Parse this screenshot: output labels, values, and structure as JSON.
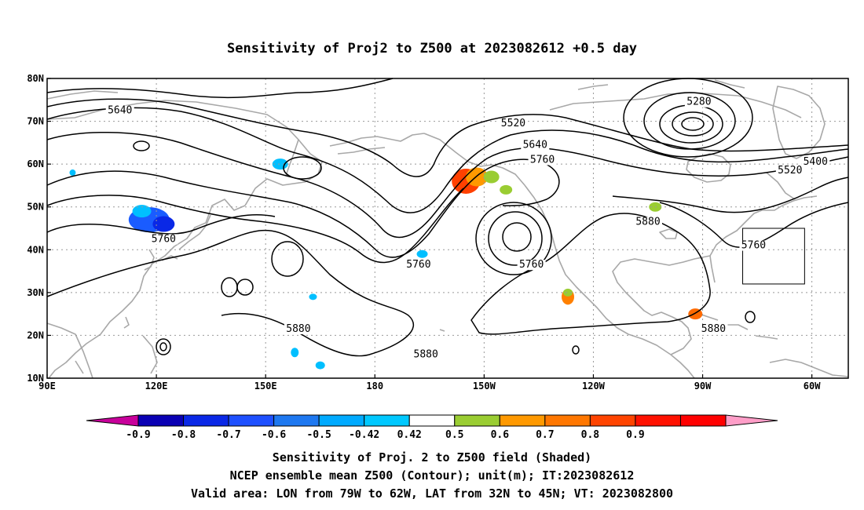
{
  "title": "Sensitivity of Proj2 to Z500 at 2023082612 +0.5 day",
  "map": {
    "lon_range": [
      90,
      310
    ],
    "lat_range": [
      10,
      80
    ],
    "lat_ticks": [
      {
        "value": 80,
        "label": "80N"
      },
      {
        "value": 70,
        "label": "70N"
      },
      {
        "value": 60,
        "label": "60N"
      },
      {
        "value": 50,
        "label": "50N"
      },
      {
        "value": 40,
        "label": "40N"
      },
      {
        "value": 30,
        "label": "30N"
      },
      {
        "value": 20,
        "label": "20N"
      },
      {
        "value": 10,
        "label": "10N"
      }
    ],
    "lon_ticks": [
      {
        "value": 90,
        "label": "90E"
      },
      {
        "value": 120,
        "label": "120E"
      },
      {
        "value": 150,
        "label": "150E"
      },
      {
        "value": 180,
        "label": "180"
      },
      {
        "value": 210,
        "label": "150W"
      },
      {
        "value": 240,
        "label": "120W"
      },
      {
        "value": 270,
        "label": "90W"
      },
      {
        "value": 300,
        "label": "60W"
      }
    ],
    "grid": "dotted",
    "valid_box": {
      "lon": [
        281,
        298
      ],
      "lat": [
        32,
        45
      ]
    },
    "contour_labels": [
      {
        "text": "5640",
        "lon": 110,
        "lat": 72
      },
      {
        "text": "5520",
        "lon": 218,
        "lat": 69
      },
      {
        "text": "5640",
        "lon": 224,
        "lat": 64
      },
      {
        "text": "5760",
        "lon": 226,
        "lat": 60.5
      },
      {
        "text": "5280",
        "lon": 269,
        "lat": 74
      },
      {
        "text": "5400",
        "lon": 301,
        "lat": 60
      },
      {
        "text": "5520",
        "lon": 294,
        "lat": 58
      },
      {
        "text": "5760",
        "lon": 122,
        "lat": 42
      },
      {
        "text": "5760",
        "lon": 192,
        "lat": 36
      },
      {
        "text": "5760",
        "lon": 223,
        "lat": 36
      },
      {
        "text": "5880",
        "lon": 255,
        "lat": 46
      },
      {
        "text": "5760",
        "lon": 284,
        "lat": 40.5
      },
      {
        "text": "5880",
        "lon": 159,
        "lat": 21
      },
      {
        "text": "5880",
        "lon": 194,
        "lat": 15
      },
      {
        "text": "5880",
        "lon": 273,
        "lat": 21
      }
    ],
    "shaded_blobs": [
      {
        "lon": 118,
        "lat": 47,
        "color": "#1a5cff"
      },
      {
        "lon": 122,
        "lat": 46,
        "color": "#0a28e6"
      },
      {
        "lon": 116,
        "lat": 49,
        "color": "#00bfff"
      },
      {
        "lon": 205,
        "lat": 56,
        "color": "#ff4000"
      },
      {
        "lon": 208,
        "lat": 57,
        "color": "#ff9900"
      },
      {
        "lon": 212,
        "lat": 57,
        "color": "#9acd32"
      },
      {
        "lon": 216,
        "lat": 54,
        "color": "#9acd32"
      },
      {
        "lon": 154,
        "lat": 60,
        "color": "#00bfff"
      },
      {
        "lon": 193,
        "lat": 39,
        "color": "#00bfff"
      },
      {
        "lon": 257,
        "lat": 50,
        "color": "#9acd32"
      },
      {
        "lon": 233,
        "lat": 29,
        "color": "#ff8000"
      },
      {
        "lon": 233,
        "lat": 30,
        "color": "#9acd32"
      },
      {
        "lon": 268,
        "lat": 25,
        "color": "#ff6a00"
      },
      {
        "lon": 163,
        "lat": 29,
        "color": "#00bfff"
      },
      {
        "lon": 158,
        "lat": 16,
        "color": "#00bfff"
      },
      {
        "lon": 165,
        "lat": 13,
        "color": "#00bfff"
      },
      {
        "lon": 97,
        "lat": 58,
        "color": "#00bfff"
      }
    ]
  },
  "colorbar": {
    "colors": [
      "#c8009b",
      "#0a00b4",
      "#0a28e6",
      "#1e50ff",
      "#1e78f0",
      "#00aaff",
      "#00c8ff",
      "#ffffff",
      "#9acd32",
      "#ff9900",
      "#ff7700",
      "#ff4400",
      "#ff1100",
      "#ff0000",
      "#ff9ec8"
    ],
    "labels": [
      "-0.9",
      "-0.8",
      "-0.7",
      "-0.6",
      "-0.5",
      "-0.42",
      "0.42",
      "0.5",
      "0.6",
      "0.7",
      "0.8",
      "0.9"
    ]
  },
  "caption": {
    "line1": "Sensitivity of Proj. 2 to Z500 field (Shaded)",
    "line2": "NCEP ensemble mean Z500 (Contour); unit(m); IT:2023082612",
    "line3": "Valid area: LON from 79W to 62W, LAT from 32N to 45N; VT: 2023082800"
  }
}
